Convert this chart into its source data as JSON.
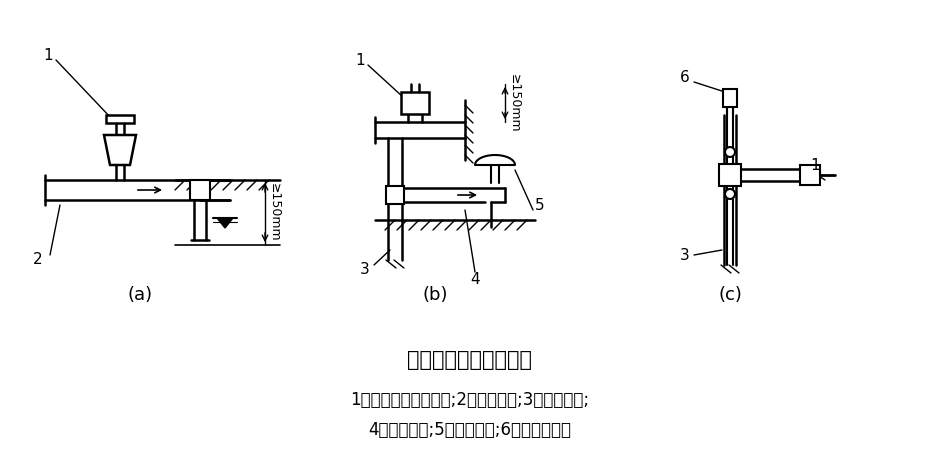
{
  "title": "大气型真空破坏器安装",
  "legend_line1": "1一管顶形真空破坏器;2一给水干管;3一给水立管;",
  "legend_line2": "4一给水支管;5一用水设备;6一自动排气阀",
  "label_a": "(a)",
  "label_b": "(b)",
  "label_c": "(c)",
  "dim_text": "≥150mm",
  "bg_color": "#ffffff",
  "line_color": "#000000",
  "title_fontsize": 15,
  "legend_fontsize": 12,
  "label_fontsize": 13
}
